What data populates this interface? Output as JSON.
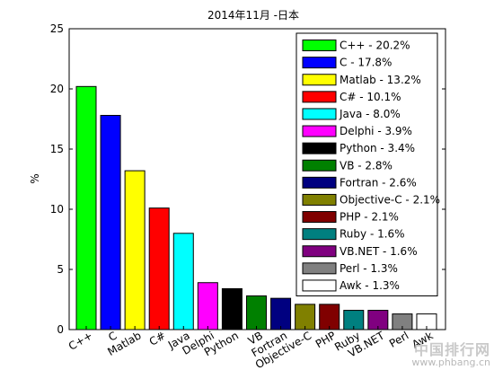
{
  "chart_data": {
    "type": "bar",
    "title": "2014年11月 -日本",
    "xlabel": "",
    "ylabel": "%",
    "ylim": [
      0,
      25
    ],
    "yticks": [
      0,
      5,
      10,
      15,
      20,
      25
    ],
    "grid": false,
    "legend_position": "top-right",
    "categories": [
      "C++",
      "C",
      "Matlab",
      "C#",
      "Java",
      "Delphi",
      "Python",
      "VB",
      "Fortran",
      "Objective-C",
      "PHP",
      "Ruby",
      "VB.NET",
      "Perl",
      "Awk"
    ],
    "values": [
      20.2,
      17.8,
      13.2,
      10.1,
      8.0,
      3.9,
      3.4,
      2.8,
      2.6,
      2.1,
      2.1,
      1.6,
      1.6,
      1.3,
      1.3
    ],
    "colors": [
      "#00ff00",
      "#0000ff",
      "#ffff00",
      "#ff0000",
      "#00ffff",
      "#ff00ff",
      "#000000",
      "#008000",
      "#000080",
      "#808000",
      "#800000",
      "#008080",
      "#800080",
      "#808080",
      "#ffffff"
    ],
    "legend": [
      "C++ - 20.2%",
      "C - 17.8%",
      "Matlab - 13.2%",
      "C# - 10.1%",
      "Java - 8.0%",
      "Delphi - 3.9%",
      "Python - 3.4%",
      "VB - 2.8%",
      "Fortran - 2.6%",
      "Objective-C - 2.1%",
      "PHP - 2.1%",
      "Ruby - 1.6%",
      "VB.NET - 1.6%",
      "Perl - 1.3%",
      "Awk - 1.3%"
    ]
  },
  "watermark": {
    "text": "中国排行网",
    "url": "www.phbang.cn"
  }
}
